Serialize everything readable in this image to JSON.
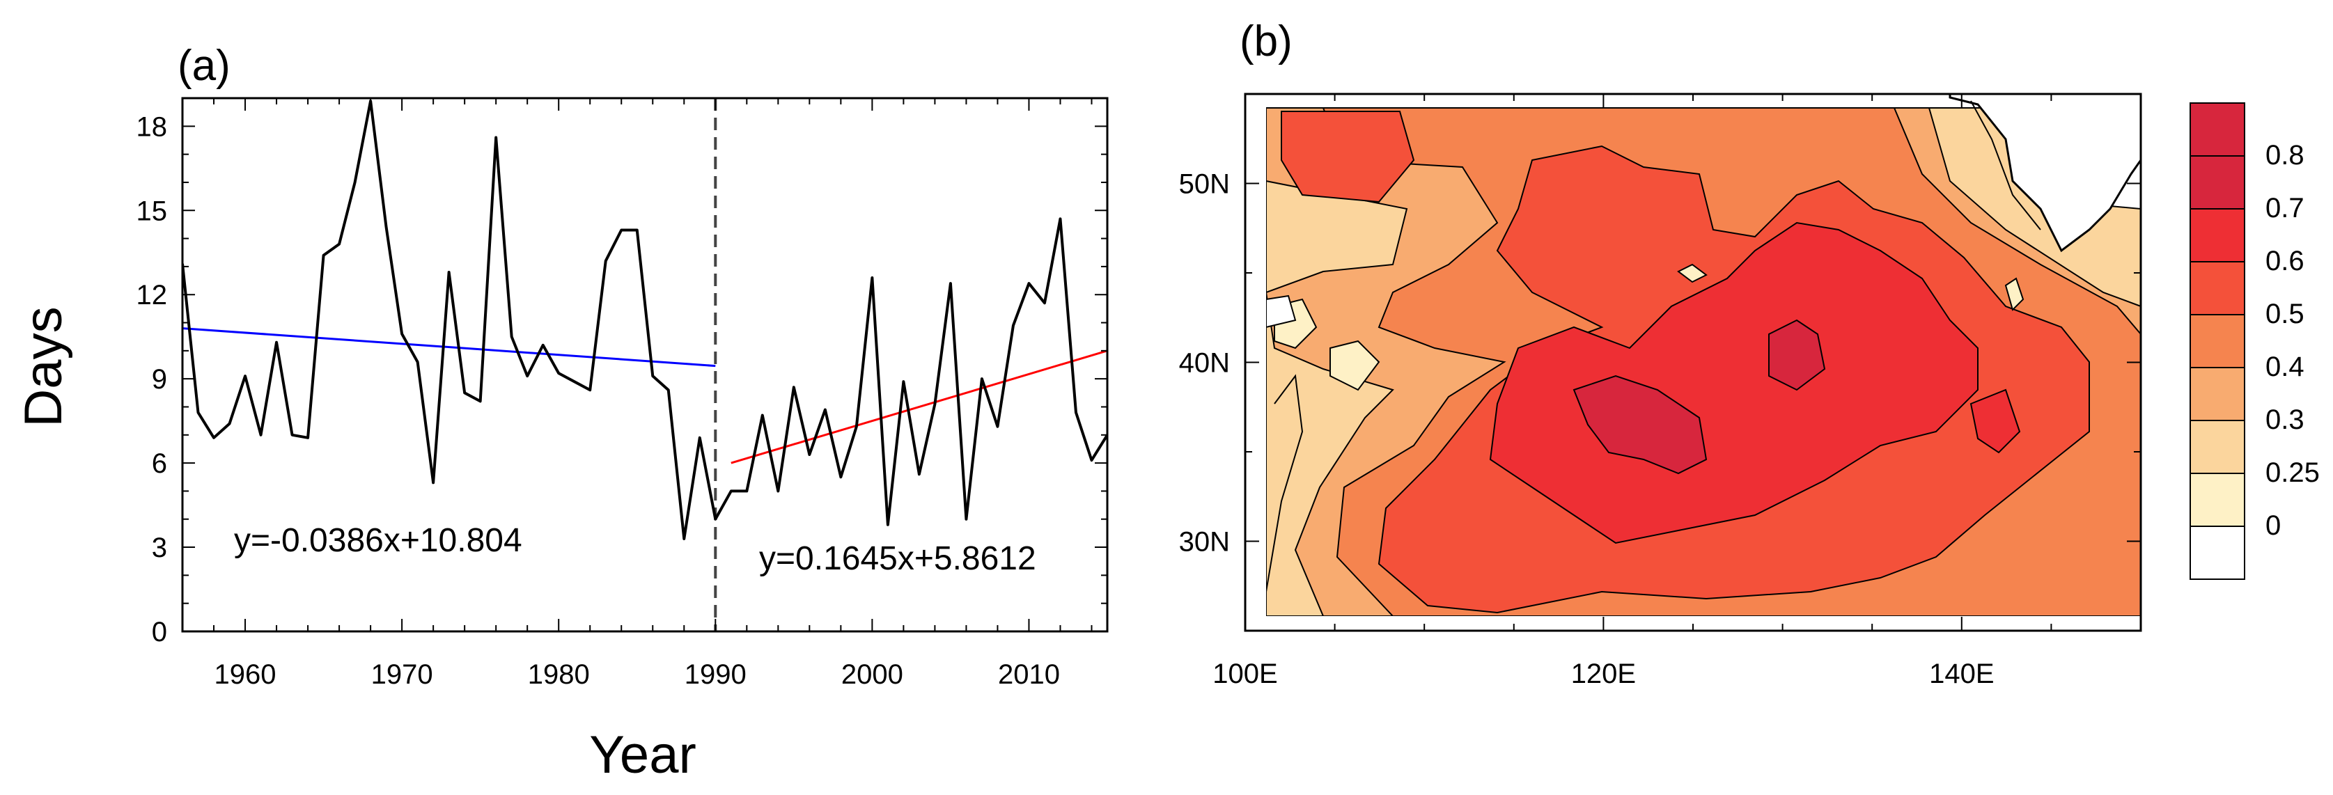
{
  "chart_data": [
    {
      "panel_label": "(a)",
      "type": "line",
      "xlabel": "Year",
      "ylabel": "Days",
      "xlim": [
        1956,
        2015
      ],
      "ylim": [
        0,
        19
      ],
      "xticks": [
        1960,
        1970,
        1980,
        1990,
        2000,
        2010
      ],
      "yticks": [
        0,
        3,
        6,
        9,
        12,
        15,
        18
      ],
      "series": [
        {
          "color": "#000000",
          "x": [
            1956,
            1957,
            1958,
            1959,
            1960,
            1961,
            1962,
            1963,
            1964,
            1965,
            1966,
            1967,
            1968,
            1969,
            1970,
            1971,
            1972,
            1973,
            1974,
            1975,
            1976,
            1977,
            1978,
            1979,
            1980,
            1981,
            1982,
            1983,
            1984,
            1985,
            1986,
            1987,
            1988,
            1989,
            1990,
            1991,
            1992,
            1993,
            1994,
            1995,
            1996,
            1997,
            1998,
            1999,
            2000,
            2001,
            2002,
            2003,
            2004,
            2005,
            2006,
            2007,
            2008,
            2009,
            2010,
            2011,
            2012,
            2013,
            2014,
            2015
          ],
          "y": [
            13.1,
            7.8,
            6.9,
            7.4,
            9.1,
            7.0,
            10.3,
            7.0,
            6.9,
            13.4,
            13.8,
            16.0,
            18.9,
            14.4,
            10.6,
            9.6,
            5.3,
            12.8,
            8.5,
            8.2,
            17.6,
            10.5,
            9.1,
            10.2,
            9.2,
            8.9,
            8.6,
            13.2,
            14.3,
            14.3,
            9.1,
            8.6,
            3.3,
            6.9,
            4.0,
            5.0,
            5.0,
            7.7,
            5.0,
            8.7,
            6.3,
            7.9,
            5.5,
            7.3,
            12.6,
            3.8,
            8.9,
            5.6,
            8.1,
            12.4,
            4.0,
            9.0,
            7.3,
            10.9,
            12.4,
            11.7,
            14.7,
            7.8,
            6.1,
            7.0
          ]
        }
      ],
      "trend_lines": [
        {
          "color": "#0000ff",
          "x": [
            1956,
            1990
          ],
          "y": [
            10.8,
            9.46
          ],
          "equation": "y=-0.0386x+10.804"
        },
        {
          "color": "#ff0000",
          "x": [
            1991,
            2015
          ],
          "y": [
            6.0,
            10.0
          ],
          "equation": "y=0.1645x+5.8612"
        }
      ],
      "vline_x": 1990
    },
    {
      "panel_label": "(b)",
      "type": "heatmap",
      "xticks": [
        "100E",
        "120E",
        "140E"
      ],
      "yticks": [
        "30N",
        "40N",
        "50N"
      ],
      "xlim": [
        100,
        150
      ],
      "ylim": [
        25,
        55
      ],
      "colorbar": {
        "levels": [
          {
            "label": "0.8",
            "color": "#d7263d"
          },
          {
            "label": "0.7",
            "color": "#ee2f34"
          },
          {
            "label": "0.6",
            "color": "#f4513a"
          },
          {
            "label": "0.5",
            "color": "#f5844f"
          },
          {
            "label": "0.4",
            "color": "#f8ab70"
          },
          {
            "label": "0.3",
            "color": "#fbd59d"
          },
          {
            "label": "0.25",
            "color": "#fef1c6"
          },
          {
            "label": "0",
            "color": "#ffffff"
          }
        ],
        "top_color": "#d7263d"
      }
    }
  ]
}
